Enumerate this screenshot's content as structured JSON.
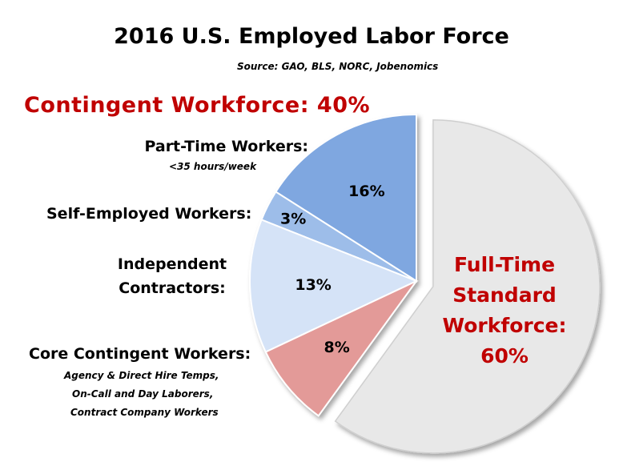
{
  "title": "2016 U.S. Employed Labor Force",
  "source": "Source: GAO, BLS, NORC, Jobenomics",
  "contingent_header": "Contingent Workforce: 40%",
  "labels": {
    "part_time": "Part-Time Workers:",
    "part_time_sub": "<35 hours/week",
    "self_employed": "Self-Employed Workers:",
    "independent_1": "Independent",
    "independent_2": "Contractors:",
    "core": "Core Contingent Workers:",
    "core_sub_1": "Agency & Direct Hire Temps,",
    "core_sub_2": "On-Call and Day Laborers,",
    "core_sub_3": "Contract Company Workers"
  },
  "full_time_label": [
    "Full-Time",
    "Standard",
    "Workforce:",
    "60%"
  ],
  "chart_data": {
    "type": "pie",
    "title": "2016 U.S. Employed Labor Force",
    "slices": [
      {
        "label": "Part-Time Workers",
        "value": 16,
        "text": "16%",
        "color": "#7fa7e0"
      },
      {
        "label": "Self-Employed Workers",
        "value": 3,
        "text": "3%",
        "color": "#9dbde9"
      },
      {
        "label": "Independent Contractors",
        "value": 13,
        "text": "13%",
        "color": "#d5e3f7"
      },
      {
        "label": "Core Contingent Workers",
        "value": 8,
        "text": "8%",
        "color": "#e39a98"
      },
      {
        "label": "Full-Time Standard Workforce",
        "value": 60,
        "text": "60%",
        "color": "#e8e8e8",
        "exploded": true
      }
    ]
  }
}
